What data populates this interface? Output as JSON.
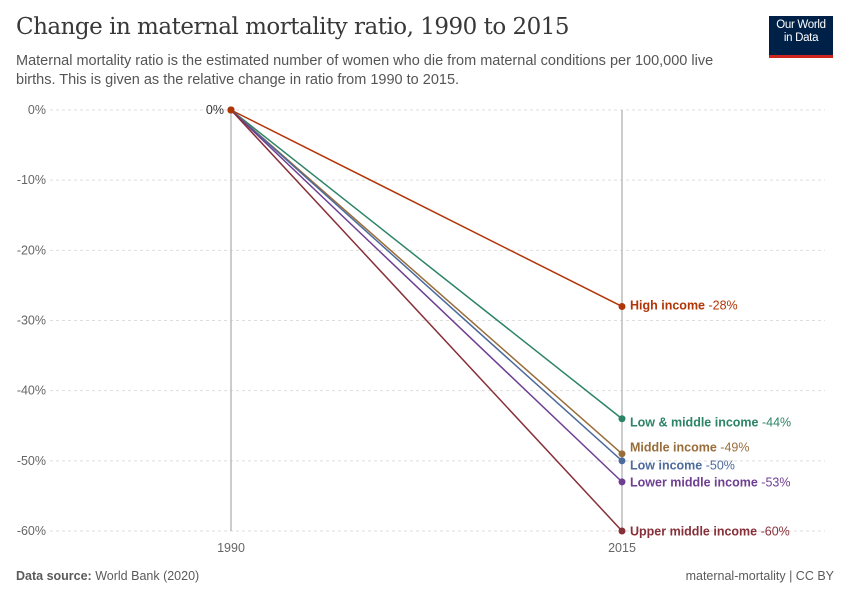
{
  "header": {
    "title": "Change in maternal mortality ratio, 1990 to 2015",
    "subtitle": "Maternal mortality ratio is the estimated number of women who die from maternal conditions per 100,000 live births. This is given as the relative change in ratio from 1990 to 2015.",
    "logo_line1": "Our World",
    "logo_line2": "in Data"
  },
  "footer": {
    "source_label": "Data source:",
    "source": "World Bank (2020)",
    "right": "maternal-mortality | CC BY"
  },
  "chart_data": {
    "type": "line",
    "x": [
      "1990",
      "2015"
    ],
    "ylim": [
      -60,
      0
    ],
    "yticks": [
      0,
      -10,
      -20,
      -30,
      -40,
      -50,
      -60
    ],
    "ytick_labels": [
      "0%",
      "-10%",
      "-20%",
      "-30%",
      "-40%",
      "-50%",
      "-60%"
    ],
    "start_label": "0%",
    "grid": true,
    "series": [
      {
        "name": "High income",
        "values": [
          0,
          -28
        ],
        "label": "-28%",
        "color": "#b13507"
      },
      {
        "name": "Low & middle income",
        "values": [
          0,
          -44
        ],
        "label": "-44%",
        "color": "#2c8465"
      },
      {
        "name": "Middle income",
        "values": [
          0,
          -49
        ],
        "label": "-49%",
        "color": "#996d39"
      },
      {
        "name": "Low income",
        "values": [
          0,
          -50
        ],
        "label": "-50%",
        "color": "#4c6a9c"
      },
      {
        "name": "Lower middle income",
        "values": [
          0,
          -53
        ],
        "label": "-53%",
        "color": "#6d3e91"
      },
      {
        "name": "Upper middle income",
        "values": [
          0,
          -60
        ],
        "label": "-60%",
        "color": "#883039"
      }
    ]
  }
}
